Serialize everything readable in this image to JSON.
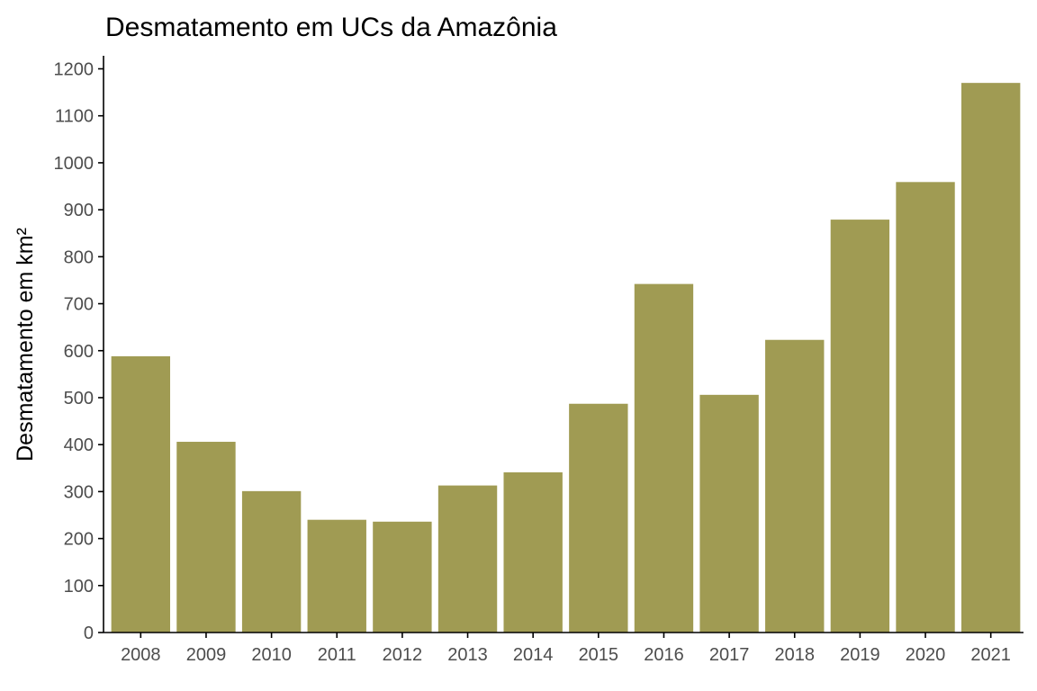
{
  "chart_data": {
    "type": "bar",
    "title": "Desmatamento em UCs da Amazônia",
    "xlabel": "",
    "ylabel": "Desmatamento em km²",
    "categories": [
      "2008",
      "2009",
      "2010",
      "2011",
      "2012",
      "2013",
      "2014",
      "2015",
      "2016",
      "2017",
      "2018",
      "2019",
      "2020",
      "2021"
    ],
    "values": [
      588,
      406,
      301,
      240,
      236,
      313,
      341,
      487,
      742,
      506,
      623,
      879,
      959,
      1170
    ],
    "ylim": [
      0,
      1200
    ],
    "yticks": [
      "0",
      "100",
      "200",
      "300",
      "400",
      "500",
      "600",
      "700",
      "800",
      "900",
      "1000",
      "1100",
      "1200"
    ],
    "bar_color": "#a09b53",
    "grid": false,
    "legend": "none"
  }
}
